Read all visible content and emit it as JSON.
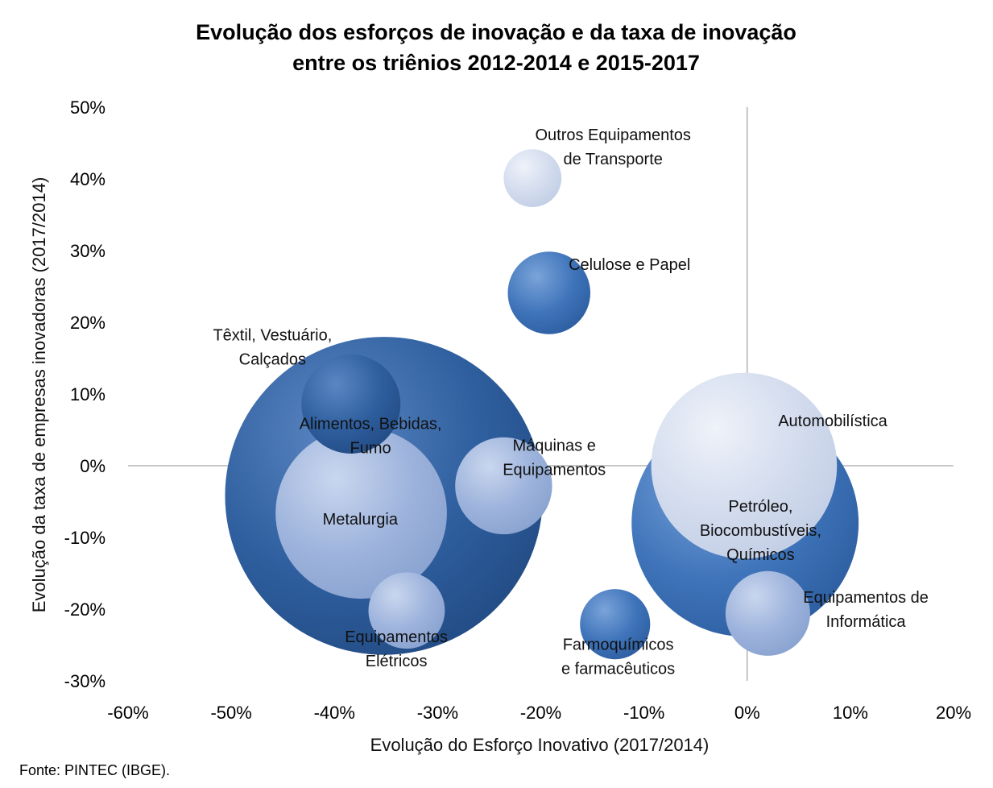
{
  "chart_data": {
    "type": "bubble",
    "title_lines": [
      "Evolução dos esforços de inovação e da taxa de inovação",
      "entre os triênios 2012-2014 e 2015-2017"
    ],
    "xlabel": "Evolução do Esforço Inovativo (2017/2014)",
    "ylabel": "Evolução da taxa de empresas inovadoras (2017/2014)",
    "source": "Fonte: PINTEC (IBGE).",
    "xlim": [
      -60,
      20
    ],
    "ylim": [
      -30,
      50
    ],
    "x_ticks": [
      -60,
      -50,
      -40,
      -30,
      -20,
      -10,
      0,
      10,
      20
    ],
    "x_tick_labels": [
      "-60%",
      "-50%",
      "-40%",
      "-30%",
      "-20%",
      "-10%",
      "0%",
      "10%",
      "20%"
    ],
    "y_ticks": [
      50,
      40,
      30,
      20,
      10,
      0,
      -10,
      -20,
      -30
    ],
    "y_tick_labels": [
      "50%",
      "40%",
      "30%",
      "20%",
      "10%",
      "0%",
      "-10%",
      "-20%",
      "-30%"
    ],
    "grid": false,
    "colors": {
      "dark": "#2f5f9f",
      "medium": "#4a7fc4",
      "light": "#9db3dc",
      "pale": "#cdd7ea"
    },
    "bubbles": [
      {
        "label_lines": [
          "Alimentos, Bebidas,",
          "Fumo"
        ],
        "x": -35.2,
        "y": -4.2,
        "size": 15.4,
        "tone": "dark",
        "label_x": -36.5,
        "label_y": 4.2,
        "anchor": "middle"
      },
      {
        "label_lines": [
          "Petróleo,",
          "Biocombustíveis,",
          "Químicos"
        ],
        "x": -0.2,
        "y": -8.0,
        "size": 11.0,
        "tone": "medium",
        "label_x": 1.3,
        "label_y": -9.0,
        "anchor": "middle"
      },
      {
        "label_lines": [
          "Automobilística"
        ],
        "x": -0.3,
        "y": 0.0,
        "size": 9.0,
        "tone": "pale",
        "label_x": 3.0,
        "label_y": 6.3,
        "anchor": "start"
      },
      {
        "label_lines": [
          "Metalurgia"
        ],
        "x": -37.4,
        "y": -6.6,
        "size": 8.3,
        "tone": "light",
        "label_x": -37.5,
        "label_y": -7.4,
        "anchor": "middle"
      },
      {
        "label_lines": [
          "Têxtil, Vestuário,",
          "Calçados"
        ],
        "x": -38.4,
        "y": 8.6,
        "size": 4.8,
        "tone": "dark",
        "label_x": -46.0,
        "label_y": 16.6,
        "anchor": "middle"
      },
      {
        "label_lines": [
          "Máquinas e",
          "Equipamentos"
        ],
        "x": -23.6,
        "y": -2.8,
        "size": 4.7,
        "tone": "light",
        "label_x": -18.7,
        "label_y": 1.2,
        "anchor": "middle"
      },
      {
        "label_lines": [
          "Celulose e Papel"
        ],
        "x": -19.2,
        "y": 24.1,
        "size": 4.0,
        "tone": "medium",
        "label_x": -17.3,
        "label_y": 28.1,
        "anchor": "start"
      },
      {
        "label_lines": [
          "Equipamentos de",
          "Informática"
        ],
        "x": 2.0,
        "y": -20.6,
        "size": 4.1,
        "tone": "light",
        "label_x": 11.5,
        "label_y": -20.0,
        "anchor": "middle"
      },
      {
        "label_lines": [
          "Equipamentos",
          "Elétricos"
        ],
        "x": -33.0,
        "y": -20.2,
        "size": 3.7,
        "tone": "light",
        "label_x": -34.0,
        "label_y": -25.5,
        "anchor": "middle"
      },
      {
        "label_lines": [
          "Farmoquímicos",
          "e farmacêuticos"
        ],
        "x": -12.8,
        "y": -22.1,
        "size": 3.4,
        "tone": "medium",
        "label_x": -12.5,
        "label_y": -26.6,
        "anchor": "middle"
      },
      {
        "label_lines": [
          "Outros Equipamentos",
          "de Transporte"
        ],
        "x": -20.8,
        "y": 40.1,
        "size": 2.8,
        "tone": "pale",
        "label_x": -13.0,
        "label_y": 44.5,
        "anchor": "middle"
      }
    ]
  }
}
